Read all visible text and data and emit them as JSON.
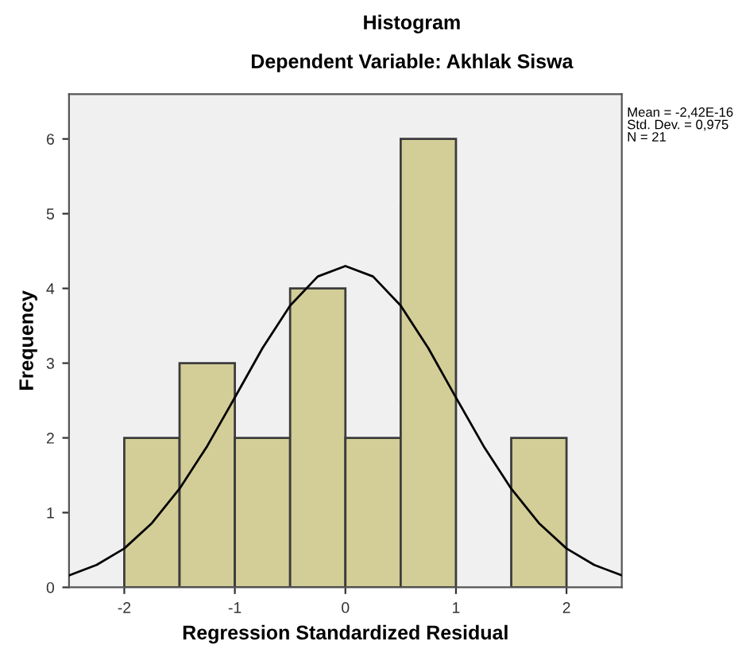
{
  "chart_data": {
    "type": "histogram",
    "title": "Histogram",
    "subtitle": "Dependent Variable: Akhlak Siswa",
    "xlabel": "Regression Standardized Residual",
    "ylabel": "Frequency",
    "bins": [
      -2,
      -1.5,
      -1,
      -0.5,
      0,
      0.5,
      1,
      1.5,
      2
    ],
    "values": [
      2,
      3,
      2,
      4,
      2,
      6,
      0,
      2
    ],
    "color": "#d3ce97",
    "series": [
      {
        "type": "line",
        "color": "#000000",
        "x": [
          -2.5,
          -2.25,
          -2,
          -1.75,
          -1.5,
          -1.25,
          -1,
          -0.75,
          -0.5,
          -0.25,
          0,
          0.25,
          0.5,
          0.75,
          1,
          1.25,
          1.5,
          1.75,
          2,
          2.25,
          2.5
        ],
        "values": [
          0.16,
          0.3,
          0.52,
          0.86,
          1.32,
          1.89,
          2.54,
          3.2,
          3.77,
          4.16,
          4.3,
          4.16,
          3.77,
          3.2,
          2.54,
          1.89,
          1.32,
          0.86,
          0.52,
          0.3,
          0.16
        ]
      }
    ],
    "annotations": [
      "Mean = -2,42E-16\nStd. Dev. = 0,975\nN = 21"
    ],
    "xlim": [
      -2.5,
      2.5
    ],
    "ylim": [
      0,
      6.6
    ],
    "xticks": [
      -2,
      -1,
      0,
      1,
      2
    ],
    "yticks": [
      0,
      1,
      2,
      3,
      4,
      5,
      6
    ],
    "grid": false,
    "legend": false
  }
}
